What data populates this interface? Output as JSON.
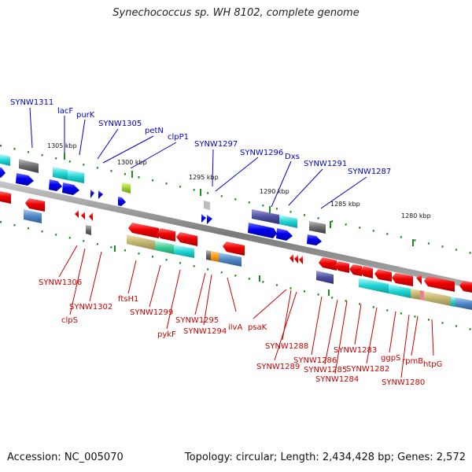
{
  "title": "Synechococcus sp. WH 8102, complete genome",
  "footer": {
    "accession": "Accession: NC_005070",
    "topology": "Topology: circular; Length: 2,434,428 bp; Genes: 2,572"
  },
  "position_labels": [
    "1305 kbp",
    "1300 kbp",
    "1295 kbp",
    "1290 kbp",
    "1285 kbp",
    "1280 kbp"
  ],
  "blue_labels": [
    "SYNW1311",
    "lacF",
    "purK",
    "SYNW1305",
    "petN",
    "clpP1",
    "SYNW1297",
    "SYNW1296",
    "Dxs",
    "SYNW1291",
    "SYNW1287"
  ],
  "red_labels": [
    "SYNW1306",
    "clpS",
    "SYNW1302",
    "ftsH1",
    "SYNW1299",
    "pykF",
    "SYNW1295",
    "SYNW1294",
    "ilvA",
    "psaK",
    "SYNW1288",
    "SYNW1289",
    "SYNW1286",
    "SYNW1285",
    "SYNW1284",
    "SYNW1283",
    "SYNW1282",
    "ggpS",
    "rpmB",
    "SYNW1280",
    "htpG"
  ],
  "colors": {
    "forward_gene": "#0000ee",
    "reverse_gene": "#ee0000",
    "backbone": "#888888",
    "tick": "#1f8a1f"
  }
}
